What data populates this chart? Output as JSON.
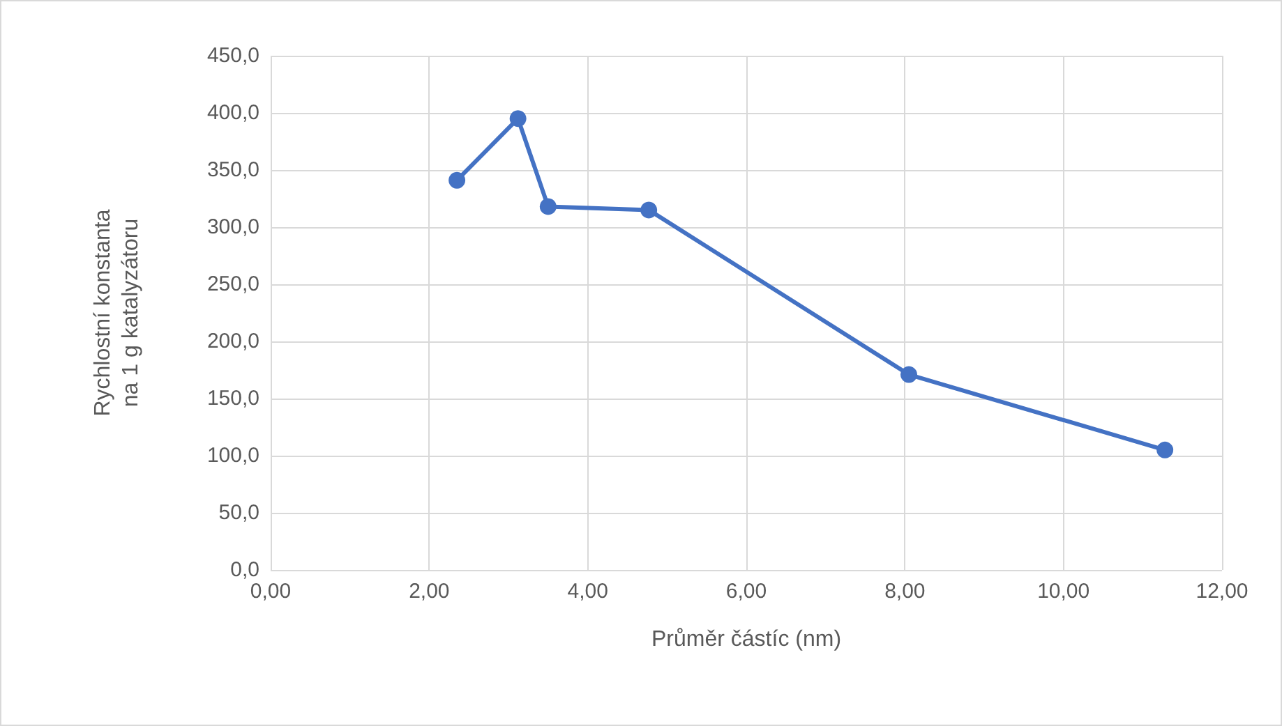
{
  "chart_data": {
    "type": "line",
    "xlabel": "Průměr částíc (nm)",
    "ylabel": "Rychlostní konstanta\nna 1 g katalyzátoru",
    "x": [
      2.35,
      3.12,
      3.5,
      4.77,
      8.05,
      11.28
    ],
    "series": [
      {
        "color": "#4472c4",
        "values": [
          341,
          395,
          318,
          315,
          171,
          105
        ]
      }
    ],
    "xlim": [
      0,
      12
    ],
    "xticks": [
      {
        "value": 0,
        "label": "0,00"
      },
      {
        "value": 2,
        "label": "2,00"
      },
      {
        "value": 4,
        "label": "4,00"
      },
      {
        "value": 6,
        "label": "6,00"
      },
      {
        "value": 8,
        "label": "8,00"
      },
      {
        "value": 10,
        "label": "10,00"
      },
      {
        "value": 12,
        "label": "12,00"
      }
    ],
    "ylim": [
      0,
      450
    ],
    "yticks": [
      {
        "value": 0,
        "label": "0,0"
      },
      {
        "value": 50,
        "label": "50,0"
      },
      {
        "value": 100,
        "label": "100,0"
      },
      {
        "value": 150,
        "label": "150,0"
      },
      {
        "value": 200,
        "label": "200,0"
      },
      {
        "value": 250,
        "label": "250,0"
      },
      {
        "value": 300,
        "label": "300,0"
      },
      {
        "value": 350,
        "label": "350,0"
      },
      {
        "value": 400,
        "label": "400,0"
      },
      {
        "value": 450,
        "label": "450,0"
      }
    ],
    "grid": true,
    "marker": "circle",
    "line_style": "solid"
  }
}
